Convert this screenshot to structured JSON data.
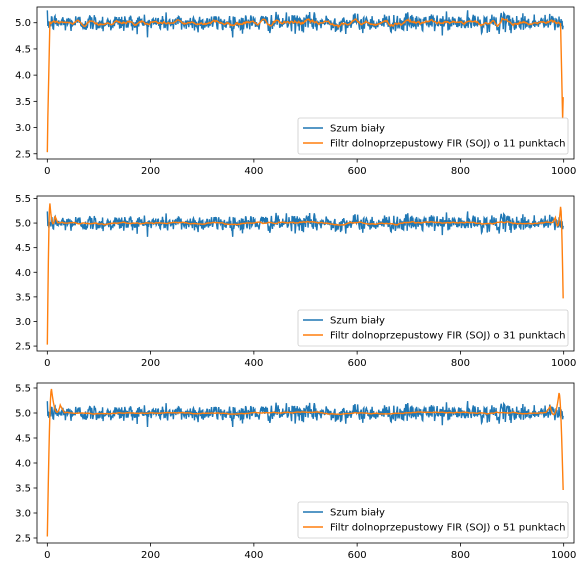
{
  "chart_data": [
    {
      "type": "line",
      "title": "",
      "xlabel": "",
      "ylabel": "",
      "xlim": [
        -20,
        1020
      ],
      "ylim": [
        2.4,
        5.3
      ],
      "x_ticks": [
        0,
        200,
        400,
        600,
        800,
        1000
      ],
      "y_ticks": [
        2.5,
        3.0,
        3.5,
        4.0,
        4.5,
        5.0
      ],
      "y_tick_labels": [
        "2.5",
        "3.0",
        "3.5",
        "4.0",
        "4.5",
        "5.0"
      ],
      "legend_position": "lower-right",
      "n_points": 1000,
      "series": [
        {
          "name": "Szum biały",
          "color": "#1f77b4",
          "mean": 5.0,
          "range": [
            4.72,
            5.27
          ],
          "description_values": {
            "typical_min": 4.8,
            "typical_max": 5.2
          }
        },
        {
          "name": "Filtr dolnoprzepustowy FIR (SOJ) o 11 punktach",
          "color": "#ff7f0e",
          "start_value": 2.53,
          "end_value": 3.58,
          "mean": 5.0,
          "range": [
            4.88,
            5.12
          ]
        }
      ]
    },
    {
      "type": "line",
      "title": "",
      "xlabel": "",
      "ylabel": "",
      "xlim": [
        -20,
        1020
      ],
      "ylim": [
        2.4,
        5.55
      ],
      "x_ticks": [
        0,
        200,
        400,
        600,
        800,
        1000
      ],
      "y_ticks": [
        2.5,
        3.0,
        3.5,
        4.0,
        4.5,
        5.0,
        5.5
      ],
      "y_tick_labels": [
        "2.5",
        "3.0",
        "3.5",
        "4.0",
        "4.5",
        "5.0",
        "5.5"
      ],
      "legend_position": "lower-right",
      "n_points": 1000,
      "series": [
        {
          "name": "Szum biały",
          "color": "#1f77b4",
          "mean": 5.0,
          "range": [
            4.72,
            5.27
          ]
        },
        {
          "name": "Filtr dolnoprzepustowy FIR (SOJ) o 31 punktach",
          "color": "#ff7f0e",
          "start_value": 2.53,
          "peak_start": 5.4,
          "peak_end": 5.33,
          "end_value": 3.47,
          "mean": 5.0,
          "range": [
            4.9,
            5.1
          ]
        }
      ]
    },
    {
      "type": "line",
      "title": "",
      "xlabel": "",
      "ylabel": "",
      "xlim": [
        -20,
        1020
      ],
      "ylim": [
        2.4,
        5.6
      ],
      "x_ticks": [
        0,
        200,
        400,
        600,
        800,
        1000
      ],
      "y_ticks": [
        2.5,
        3.0,
        3.5,
        4.0,
        4.5,
        5.0,
        5.5
      ],
      "y_tick_labels": [
        "2.5",
        "3.0",
        "3.5",
        "4.0",
        "4.5",
        "5.0",
        "5.5"
      ],
      "legend_position": "lower-right",
      "n_points": 1000,
      "series": [
        {
          "name": "Szum biały",
          "color": "#1f77b4",
          "mean": 5.0,
          "range": [
            4.72,
            5.27
          ]
        },
        {
          "name": "Filtr dolnoprzepustowy FIR (SOJ) o 51 punktach",
          "color": "#ff7f0e",
          "start_value": 2.53,
          "peak_start": 5.48,
          "peak_end": 5.4,
          "end_value": 3.46,
          "mean": 5.0,
          "range": [
            4.92,
            5.08
          ]
        }
      ]
    }
  ]
}
